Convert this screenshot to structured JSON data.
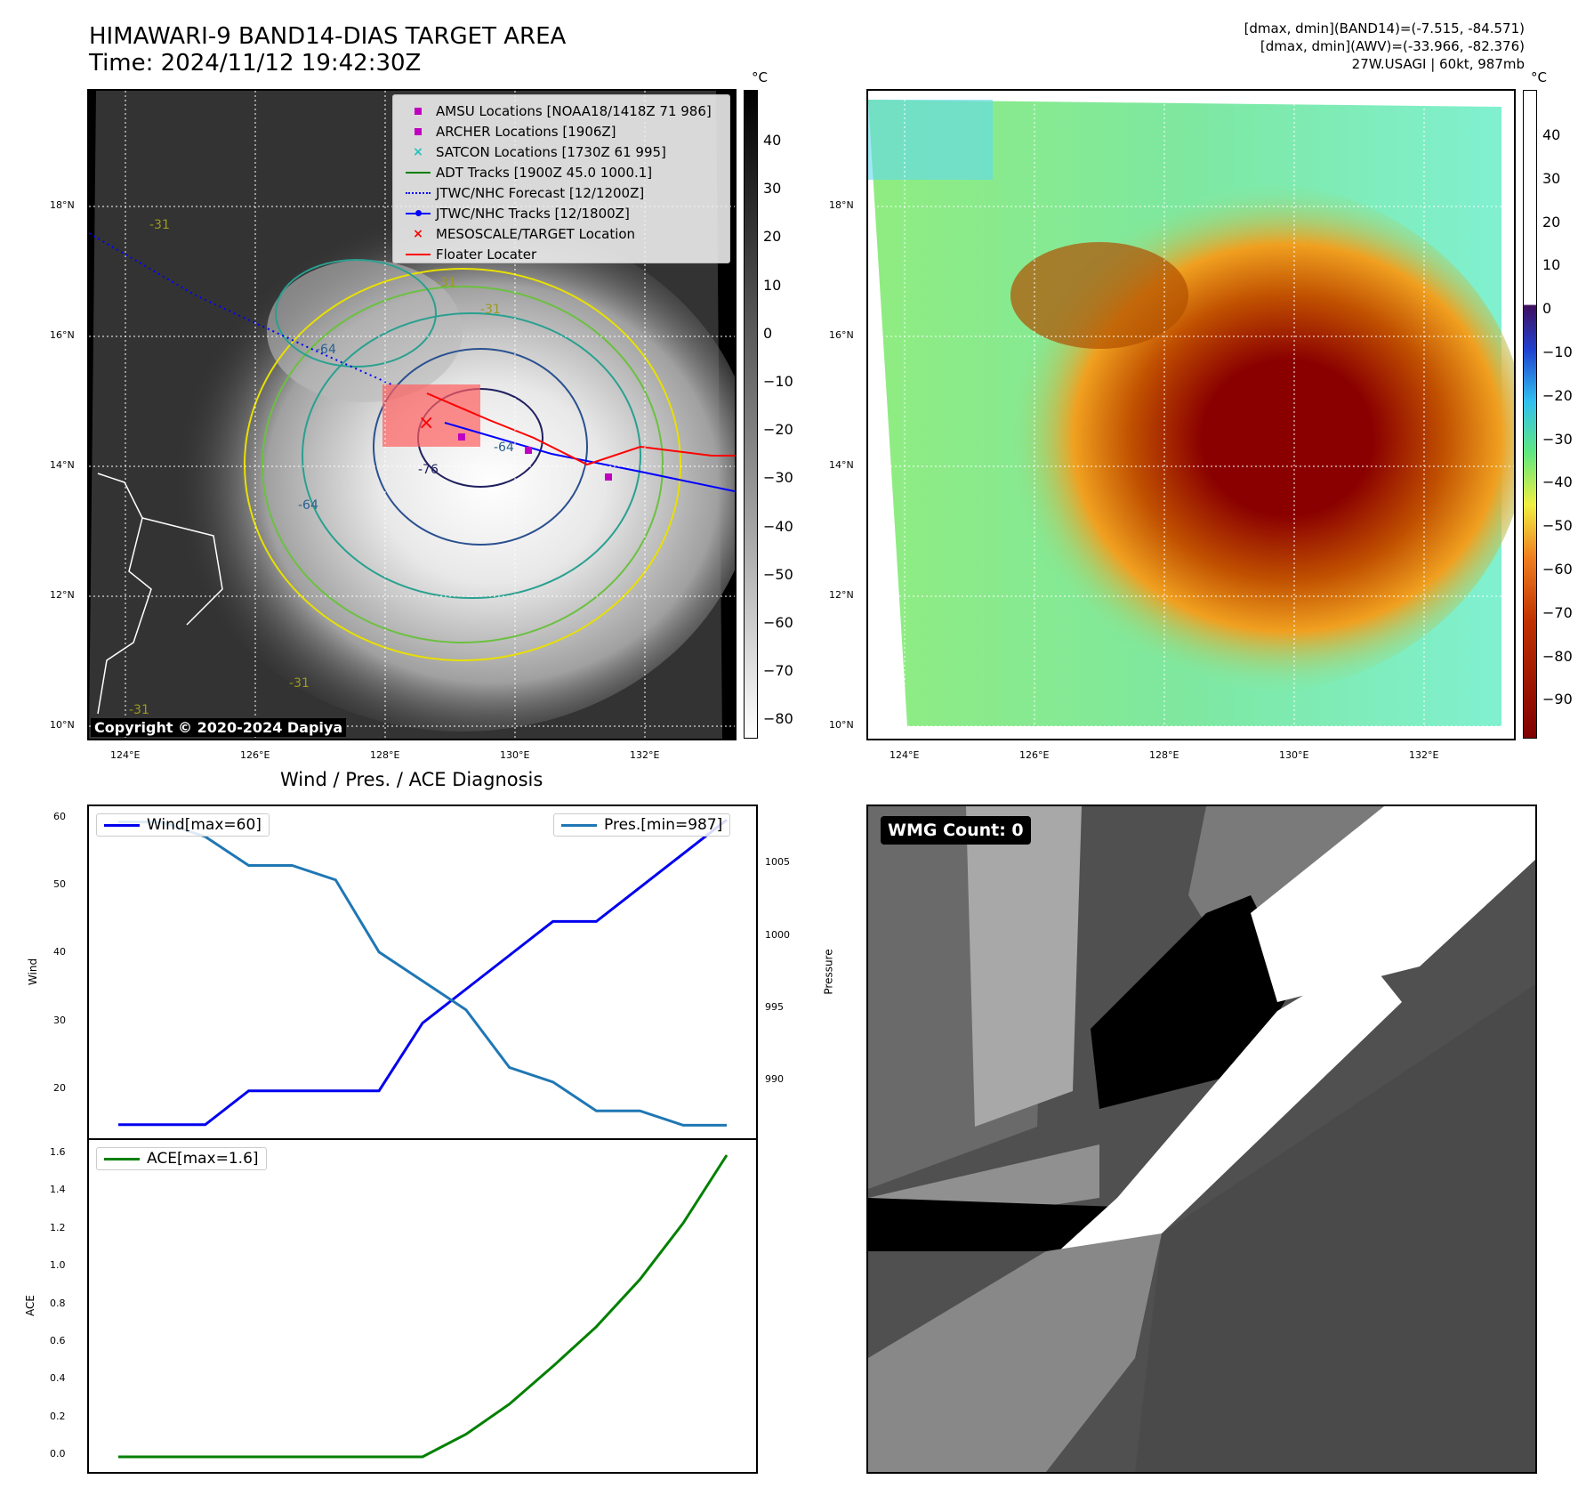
{
  "header": {
    "title_line1": "HIMAWARI-9 BAND14-DIAS TARGET AREA",
    "title_line2": "Time: 2024/11/12 19:42:30Z",
    "info_line1": "[dmax, dmin](BAND14)=(-7.515, -84.571)",
    "info_line2": "[dmax, dmin](AWV)=(-33.966, -82.376)",
    "info_line3": "27W.USAGI | 60kt, 987mb"
  },
  "map_panel": {
    "lat_ticks": [
      "18°N",
      "16°N",
      "14°N",
      "12°N",
      "10°N"
    ],
    "lon_ticks": [
      "124°E",
      "126°E",
      "128°E",
      "130°E",
      "132°E"
    ],
    "copyright": "Copyright © 2020-2024 Dapiya",
    "legend": [
      {
        "label": "AMSU Locations [NOAA18/1418Z 71 986]",
        "marker": "square",
        "color": "#c000c0"
      },
      {
        "label": "ARCHER Locations [1906Z]",
        "marker": "square",
        "color": "#c000c0"
      },
      {
        "label": "SATCON Locations [1730Z 61 995]",
        "marker": "x",
        "color": "#20c0c0"
      },
      {
        "label": "ADT Tracks [1900Z 45.0 1000.1]",
        "marker": "line",
        "color": "#008000"
      },
      {
        "label": "JTWC/NHC Forecast [12/1200Z]",
        "marker": "dotted",
        "color": "#0000ff"
      },
      {
        "label": "JTWC/NHC Tracks [12/1800Z]",
        "marker": "line-dot",
        "color": "#0000ff"
      },
      {
        "label": "MESOSCALE/TARGET Location",
        "marker": "x",
        "color": "#ff0000"
      },
      {
        "label": "Floater Locater",
        "marker": "line",
        "color": "#ff0000"
      }
    ],
    "contour_labels": [
      "-31",
      "-31",
      "-31",
      "-31",
      "-64",
      "-64",
      "-64",
      "-76",
      "-31"
    ],
    "colorbar_unit": "°C",
    "colorbar_ticks": [
      "40",
      "30",
      "20",
      "10",
      "0",
      "−10",
      "−20",
      "−30",
      "−40",
      "−50",
      "−60",
      "−70",
      "−80"
    ]
  },
  "awv_panel": {
    "lat_ticks": [
      "18°N",
      "16°N",
      "14°N",
      "12°N",
      "10°N"
    ],
    "lon_ticks": [
      "124°E",
      "126°E",
      "128°E",
      "130°E",
      "132°E"
    ],
    "colorbar_unit": "°C",
    "colorbar_ticks": [
      "40",
      "30",
      "20",
      "10",
      "0",
      "−10",
      "−20",
      "−30",
      "−40",
      "−50",
      "−60",
      "−70",
      "−80",
      "−90"
    ]
  },
  "diagnosis": {
    "title": "Wind / Pres. / ACE Diagnosis",
    "wind_legend": "Wind[max=60]",
    "pres_legend": "Pres.[min=987]",
    "ace_legend": "ACE[max=1.6]",
    "wind_axis_label": "Wind",
    "pres_axis_label": "Pressure",
    "ace_axis_label": "ACE",
    "wind_ticks": [
      "60",
      "50",
      "40",
      "30",
      "20"
    ],
    "pres_ticks": [
      "1005",
      "1000",
      "995",
      "990"
    ],
    "ace_ticks": [
      "1.6",
      "1.4",
      "1.2",
      "1.0",
      "0.8",
      "0.6",
      "0.4",
      "0.2",
      "0.0"
    ]
  },
  "wmg_panel": {
    "label": "WMG Count: 0"
  },
  "chart_data": [
    {
      "type": "line",
      "title": "Wind / Pres. / ACE Diagnosis",
      "x": [
        0,
        1,
        2,
        3,
        4,
        5,
        6,
        7,
        8,
        9,
        10,
        11,
        12,
        13,
        14
      ],
      "series": [
        {
          "name": "Wind[max=60]",
          "axis": "left",
          "color": "#0000ee",
          "values": [
            15,
            15,
            15,
            20,
            20,
            20,
            20,
            30,
            35,
            40,
            45,
            45,
            50,
            55,
            60
          ]
        },
        {
          "name": "Pres.[min=987]",
          "axis": "right",
          "color": "#1f77b4",
          "values": [
            1008,
            1008,
            1007,
            1005,
            1005,
            1004,
            999,
            997,
            995,
            991,
            990,
            988,
            988,
            987,
            987
          ]
        }
      ],
      "ylabel": "Wind",
      "ylim": [
        13,
        62
      ],
      "y2label": "Pressure",
      "y2lim": [
        986.1,
        1009.1
      ]
    },
    {
      "type": "line",
      "x": [
        0,
        1,
        2,
        3,
        4,
        5,
        6,
        7,
        8,
        9,
        10,
        11,
        12,
        13,
        14
      ],
      "series": [
        {
          "name": "ACE[max=1.6]",
          "color": "#008000",
          "values": [
            0,
            0,
            0,
            0,
            0,
            0,
            0,
            0,
            0.12,
            0.28,
            0.48,
            0.69,
            0.94,
            1.24,
            1.6
          ]
        }
      ],
      "ylabel": "ACE",
      "ylim": [
        -0.08,
        1.68
      ]
    }
  ]
}
